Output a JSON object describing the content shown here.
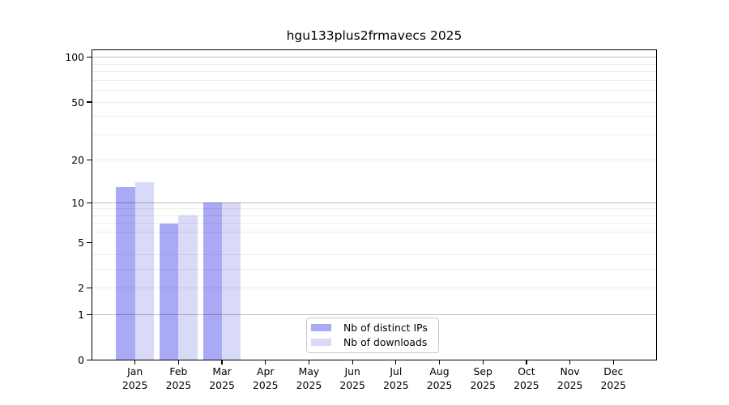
{
  "chart_data": {
    "type": "bar",
    "title": "hgu133plus2frmavecs 2025",
    "months": [
      "Jan",
      "Feb",
      "Mar",
      "Apr",
      "May",
      "Jun",
      "Jul",
      "Aug",
      "Sep",
      "Oct",
      "Nov",
      "Dec"
    ],
    "year_label": "2025",
    "series": [
      {
        "name": "Nb of distinct IPs",
        "key": "ips",
        "color": "#a9a9f5",
        "values": [
          13,
          7,
          10,
          0,
          0,
          0,
          0,
          0,
          0,
          0,
          0,
          0
        ]
      },
      {
        "name": "Nb of downloads",
        "key": "downloads",
        "color": "#d9d9f8",
        "values": [
          14,
          8,
          10,
          0,
          0,
          0,
          0,
          0,
          0,
          0,
          0,
          0
        ]
      }
    ],
    "y_axis": {
      "scale": "log10(1+x)",
      "tick_labels": [
        "0",
        "1",
        "2",
        "5",
        "10",
        "20",
        "50",
        "100"
      ],
      "tick_values": [
        0,
        1,
        2,
        5,
        10,
        20,
        50,
        100
      ],
      "major_gridlines": [
        1,
        10,
        100
      ],
      "minor_gridlines": [
        2,
        3,
        4,
        6,
        7,
        8,
        9,
        20,
        30,
        40,
        50,
        60,
        70,
        80,
        90
      ],
      "ylim": [
        0,
        113
      ]
    },
    "legend_position": "lower-center",
    "grid": true
  },
  "colors": {
    "bar_ips": "#a9a9f5",
    "bar_downloads": "#d9d9f8",
    "grid_major": "rgba(0,0,0,0.25)",
    "grid_minor": "rgba(0,0,0,0.07)",
    "axis": "#000000",
    "legend_border": "#c9c9c9",
    "background": "#ffffff"
  }
}
